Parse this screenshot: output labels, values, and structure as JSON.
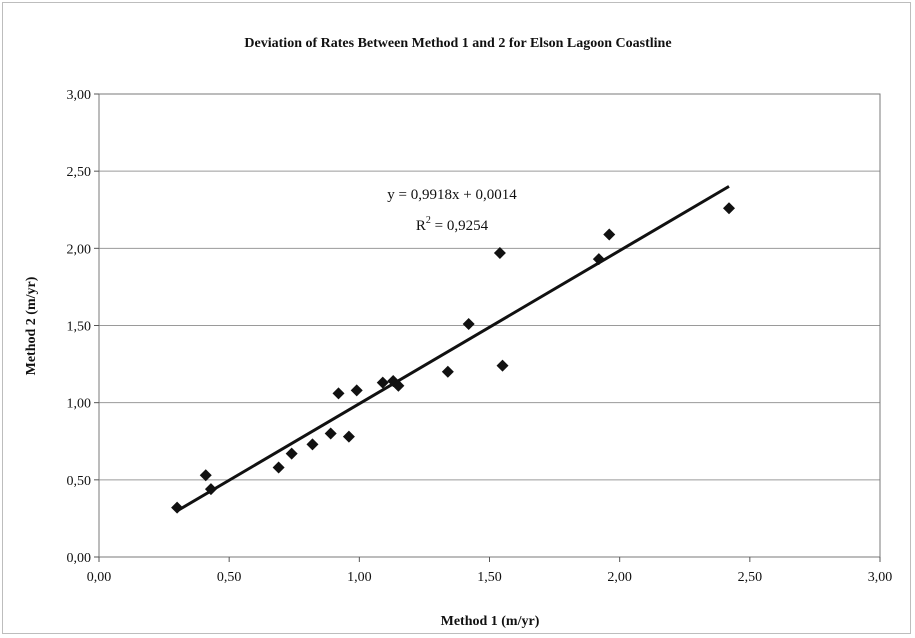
{
  "chart_data": {
    "type": "scatter",
    "title": "Deviation of Rates Between Method 1 and 2 for Elson Lagoon Coastline",
    "xlabel": "Method 1 (m/yr)",
    "ylabel": "Method 2 (m/yr)",
    "xlim": [
      0,
      3
    ],
    "ylim": [
      0,
      3
    ],
    "x_ticks": [
      "0,00",
      "0,50",
      "1,00",
      "1,50",
      "2,00",
      "2,50",
      "3,00"
    ],
    "y_ticks": [
      "0,00",
      "0,50",
      "1,00",
      "1,50",
      "2,00",
      "2,50",
      "3,00"
    ],
    "tick_values": [
      0,
      0.5,
      1,
      1.5,
      2,
      2.5,
      3
    ],
    "grid": "horizontal",
    "legend": "none",
    "colors": {
      "marker": "#111111",
      "trendline": "#111111",
      "grid": "#9a9a9a"
    },
    "trendline": {
      "slope": 0.9918,
      "intercept": 0.0014,
      "x_range": [
        0.3,
        2.42
      ]
    },
    "equation": "y = 0,9918x + 0,0014",
    "r_squared": {
      "label": "R",
      "superscript": "2",
      "value": " = 0,9254"
    },
    "points": [
      {
        "x": 0.3,
        "y": 0.32
      },
      {
        "x": 0.41,
        "y": 0.53
      },
      {
        "x": 0.43,
        "y": 0.44
      },
      {
        "x": 0.69,
        "y": 0.58
      },
      {
        "x": 0.74,
        "y": 0.67
      },
      {
        "x": 0.82,
        "y": 0.73
      },
      {
        "x": 0.89,
        "y": 0.8
      },
      {
        "x": 0.92,
        "y": 1.06
      },
      {
        "x": 0.96,
        "y": 0.78
      },
      {
        "x": 0.99,
        "y": 1.08
      },
      {
        "x": 1.09,
        "y": 1.13
      },
      {
        "x": 1.13,
        "y": 1.14
      },
      {
        "x": 1.15,
        "y": 1.11
      },
      {
        "x": 1.34,
        "y": 1.2
      },
      {
        "x": 1.42,
        "y": 1.51
      },
      {
        "x": 1.54,
        "y": 1.97
      },
      {
        "x": 1.55,
        "y": 1.24
      },
      {
        "x": 1.92,
        "y": 1.93
      },
      {
        "x": 1.96,
        "y": 2.09
      },
      {
        "x": 2.42,
        "y": 2.26
      }
    ]
  }
}
